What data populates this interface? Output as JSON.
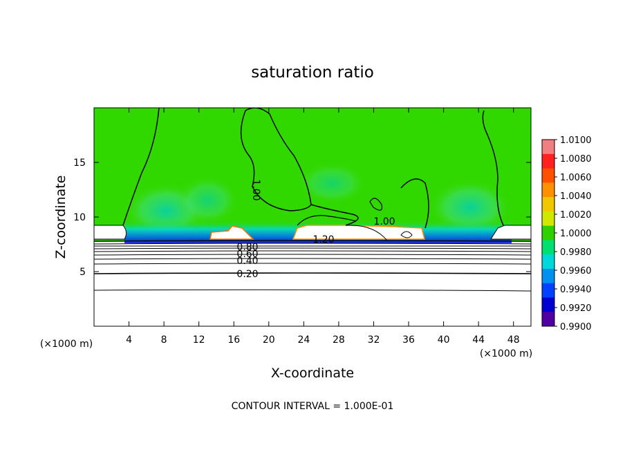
{
  "chart_data": {
    "type": "heatmap",
    "title": "saturation ratio",
    "xlabel": "X-coordinate",
    "ylabel": "Z-coordinate",
    "x_unit": "(×1000 m)",
    "y_unit": "(×1000 m)",
    "xlim": [
      0,
      50
    ],
    "ylim": [
      0,
      20
    ],
    "x_ticks": [
      4,
      8,
      12,
      16,
      20,
      24,
      28,
      32,
      36,
      40,
      44,
      48
    ],
    "y_ticks": [
      5,
      10,
      15
    ],
    "colorbar": {
      "ticks": [
        "1.0100",
        "1.0080",
        "1.0060",
        "1.0040",
        "1.0020",
        "1.0000",
        "0.9980",
        "0.9960",
        "0.9940",
        "0.9920",
        "0.9900"
      ],
      "colors": [
        "#f08080",
        "#ff2020",
        "#ff5000",
        "#ff9000",
        "#f0c800",
        "#d0e800",
        "#30d000",
        "#00e070",
        "#00d8d8",
        "#0090f0",
        "#0040ff",
        "#0000d0",
        "#5000a0"
      ],
      "range": [
        0.99,
        1.01
      ]
    },
    "contour_labels": [
      "1.00",
      "1.00",
      "1.20",
      "0.80",
      "0.60",
      "0.40",
      "0.20"
    ],
    "footer": "CONTOUR INTERVAL = 1.000E-01"
  }
}
